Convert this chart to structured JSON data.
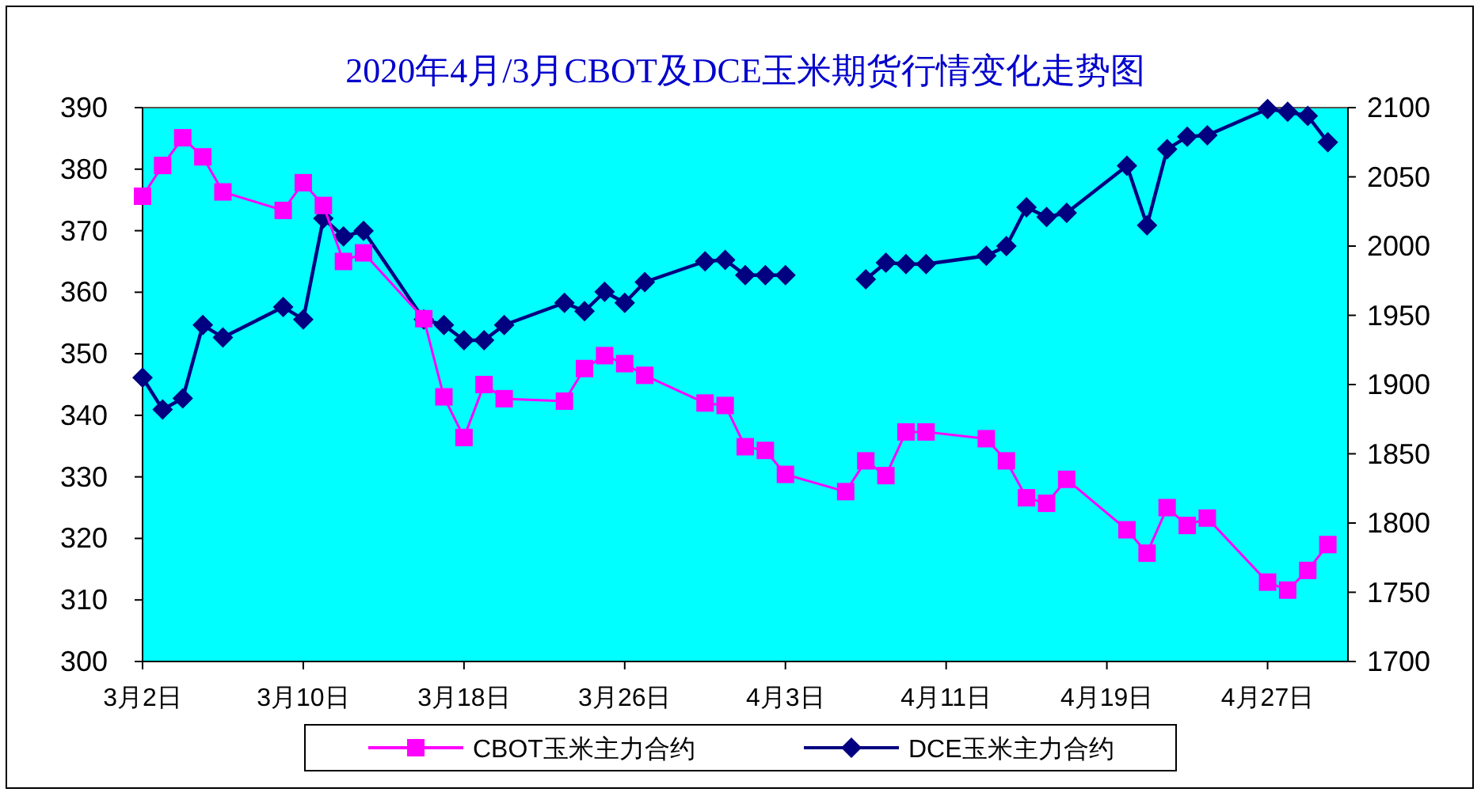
{
  "chart_data": {
    "type": "line",
    "title": "2020年4月/3月CBOT及DCE玉米期货行情变化走势图",
    "x": [
      "--03-02",
      "--03-03",
      "--03-04",
      "--03-05",
      "--03-06",
      "--03-09",
      "--03-10",
      "--03-11",
      "--03-12",
      "--03-13",
      "--03-16",
      "--03-17",
      "--03-18",
      "--03-19",
      "--03-20",
      "--03-23",
      "--03-24",
      "--03-25",
      "--03-26",
      "--03-27",
      "--03-30",
      "--03-31",
      "--04-01",
      "--04-02",
      "--04-03",
      "--04-06",
      "--04-07",
      "--04-08",
      "--04-09",
      "--04-10",
      "--04-13",
      "--04-14",
      "--04-15",
      "--04-16",
      "--04-17",
      "--04-20",
      "--04-21",
      "--04-22",
      "--04-23",
      "--04-24",
      "--04-27",
      "--04-28",
      "--04-29",
      "--04-30"
    ],
    "series": [
      {
        "name": "CBOT玉米主力合约",
        "color": "#ff00ff",
        "marker": "square",
        "values": [
          375.6,
          380.6,
          385.1,
          382.0,
          376.3,
          373.3,
          377.8,
          374.1,
          365.0,
          366.4,
          355.7,
          343.0,
          336.4,
          345.0,
          342.7,
          342.3,
          347.6,
          349.7,
          348.4,
          346.5,
          342.0,
          341.6,
          334.9,
          334.3,
          330.4,
          327.6,
          332.6,
          330.2,
          337.3,
          337.3,
          336.2,
          332.6,
          326.6,
          325.7,
          329.6,
          321.4,
          317.6,
          325.0,
          322.1,
          323.3,
          312.9,
          311.6,
          314.8,
          319.0
        ]
      },
      {
        "name": "DCE玉米主力合约",
        "color": "#000080",
        "marker": "diamond",
        "axis": "y2",
        "values": [
          1905,
          1882,
          1890,
          1943,
          1934,
          1956,
          1947,
          2020,
          2007,
          2011,
          1947,
          1943,
          1932,
          1932,
          1943,
          1959,
          1953,
          1967,
          1959,
          1974,
          1989,
          1990,
          1979,
          1979,
          1979,
          null,
          1976,
          1988,
          1987,
          1987,
          1993,
          2000,
          2028,
          2021,
          2024,
          2058,
          2015,
          2070,
          2079,
          2080,
          2099,
          2097,
          2094,
          2075
        ]
      }
    ],
    "xlim": [
      "--03-02",
      "--05-01"
    ],
    "xticks": [
      {
        "value": "--03-02",
        "label": "3月2日"
      },
      {
        "value": "--03-10",
        "label": "3月10日"
      },
      {
        "value": "--03-18",
        "label": "3月18日"
      },
      {
        "value": "--03-26",
        "label": "3月26日"
      },
      {
        "value": "--04-03",
        "label": "4月3日"
      },
      {
        "value": "--04-11",
        "label": "4月11日"
      },
      {
        "value": "--04-19",
        "label": "4月19日"
      },
      {
        "value": "--04-27",
        "label": "4月27日"
      }
    ],
    "ylim": [
      300,
      390
    ],
    "yticks": [
      300,
      310,
      320,
      330,
      340,
      350,
      360,
      370,
      380,
      390
    ],
    "y2lim": [
      1700,
      2100
    ],
    "y2ticks": [
      1700,
      1750,
      1800,
      1850,
      1900,
      1950,
      2000,
      2050,
      2100
    ],
    "legend": "bottom"
  }
}
